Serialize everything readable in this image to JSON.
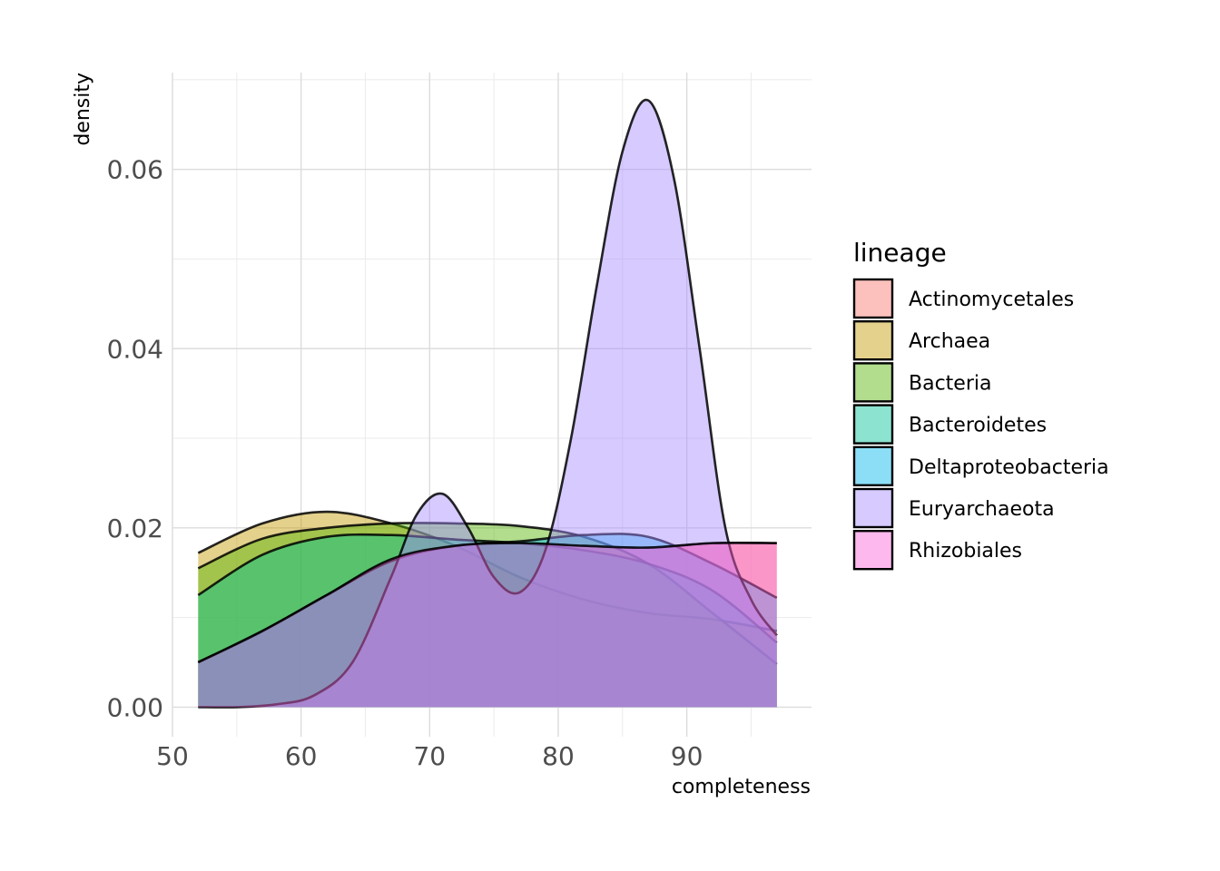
{
  "chart_data": {
    "type": "area",
    "subtype": "density",
    "xlabel": "completeness",
    "ylabel": "density",
    "xlim": [
      50,
      99
    ],
    "ylim": [
      0,
      0.07
    ],
    "x_ticks": [
      50,
      60,
      70,
      80,
      90
    ],
    "y_ticks": [
      0.0,
      0.02,
      0.04,
      0.06
    ],
    "x_tick_labels": [
      "50",
      "60",
      "70",
      "80",
      "90"
    ],
    "y_tick_labels": [
      "0.00",
      "0.02",
      "0.04",
      "0.06"
    ],
    "grid": true,
    "legend": {
      "title": "lineage",
      "placement": "right"
    },
    "fill_opacity": 0.45,
    "series": [
      {
        "name": "Actinomycetales",
        "color": "#F8766D",
        "x": [
          52,
          57,
          62,
          67,
          72,
          77,
          82,
          87,
          92,
          97
        ],
        "values": [
          0.005,
          0.0085,
          0.0125,
          0.0165,
          0.018,
          0.0183,
          0.018,
          0.0178,
          0.0183,
          0.0183
        ]
      },
      {
        "name": "Archaea",
        "color": "#C49A00",
        "x": [
          52,
          57,
          62,
          67,
          72,
          77,
          82,
          87,
          92,
          97
        ],
        "values": [
          0.0172,
          0.0205,
          0.0218,
          0.0205,
          0.018,
          0.0145,
          0.012,
          0.0105,
          0.0098,
          0.0085
        ]
      },
      {
        "name": "Bacteria",
        "color": "#53B400",
        "x": [
          52,
          57,
          62,
          67,
          72,
          77,
          82,
          87,
          92,
          97
        ],
        "values": [
          0.0155,
          0.0188,
          0.02,
          0.0205,
          0.0205,
          0.0202,
          0.019,
          0.016,
          0.0105,
          0.0048
        ]
      },
      {
        "name": "Bacteroidetes",
        "color": "#00C094",
        "x": [
          52,
          57,
          62,
          67,
          72,
          77,
          82,
          87,
          92,
          97
        ],
        "values": [
          0.0125,
          0.017,
          0.019,
          0.0192,
          0.0187,
          0.0183,
          0.0175,
          0.016,
          0.013,
          0.0072
        ]
      },
      {
        "name": "Deltaproteobacteria",
        "color": "#00B6EB",
        "x": [
          52,
          57,
          62,
          67,
          72,
          77,
          82,
          87,
          92,
          97
        ],
        "values": [
          0.005,
          0.0085,
          0.0125,
          0.0163,
          0.018,
          0.0185,
          0.0192,
          0.019,
          0.016,
          0.0122
        ]
      },
      {
        "name": "Euryarchaeota",
        "color": "#A58AFF",
        "x": [
          52,
          55,
          58,
          61,
          64,
          67,
          69,
          71,
          73,
          75,
          77,
          79,
          81,
          83,
          85,
          87,
          89,
          91,
          93,
          95,
          97
        ],
        "values": [
          0.0,
          0.0,
          0.0003,
          0.0013,
          0.005,
          0.0145,
          0.0215,
          0.0238,
          0.02,
          0.0145,
          0.0128,
          0.0175,
          0.03,
          0.047,
          0.062,
          0.0677,
          0.059,
          0.04,
          0.02,
          0.012,
          0.008
        ]
      },
      {
        "name": "Rhizobiales",
        "color": "#FB61D7",
        "x": [
          52,
          57,
          62,
          67,
          72,
          77,
          82,
          87,
          92,
          97
        ],
        "values": [
          0.005,
          0.0085,
          0.0125,
          0.0165,
          0.018,
          0.0183,
          0.018,
          0.0178,
          0.0183,
          0.0183
        ]
      }
    ]
  }
}
